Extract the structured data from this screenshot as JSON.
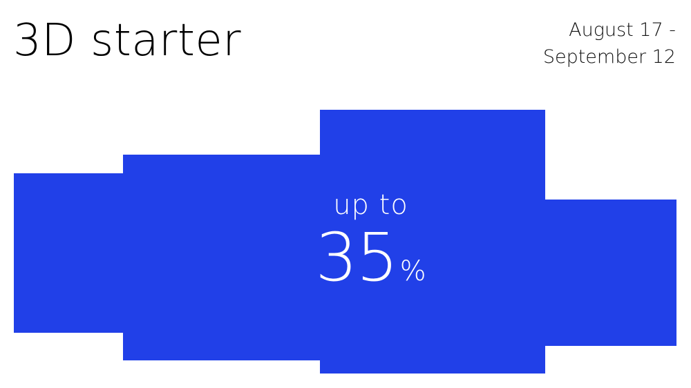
{
  "title": "3D starter",
  "dates": {
    "line1": "August 17 -",
    "line2": "September 12"
  },
  "offer": {
    "prefix": "up to",
    "value": "35",
    "unit": "%"
  },
  "colors": {
    "background": "#ffffff",
    "accent": "#2140e8",
    "text_dark": "#000000",
    "text_light": "#ffffff"
  }
}
